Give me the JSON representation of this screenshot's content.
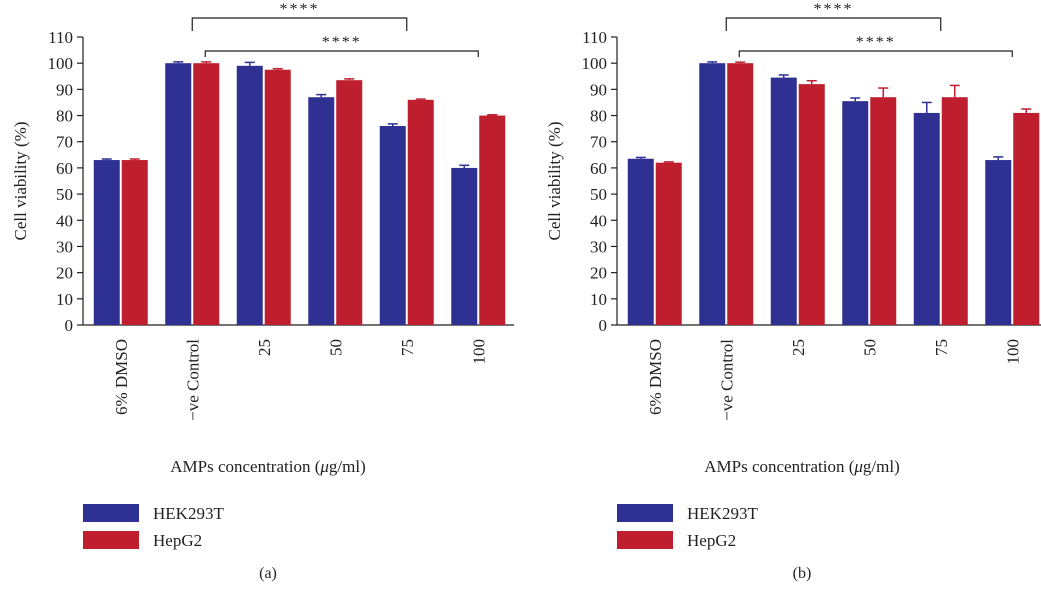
{
  "colors": {
    "HEK293T": "#2e3192",
    "HepG2": "#be1e2d",
    "axis": "#231f20"
  },
  "chart_data": [
    {
      "type": "bar",
      "panel_label": "(a)",
      "categories": [
        "6% DMSO",
        "−ve Control",
        "25",
        "50",
        "75",
        "100"
      ],
      "series": [
        {
          "name": "HEK293T",
          "values": [
            63,
            100,
            99,
            87,
            76,
            60
          ],
          "errors": [
            0.4,
            0.5,
            1.3,
            1.0,
            0.8,
            1.0
          ]
        },
        {
          "name": "HepG2",
          "values": [
            63,
            100,
            97.5,
            93.5,
            86,
            80
          ],
          "errors": [
            0.4,
            0.5,
            0.4,
            0.5,
            0.3,
            0.3
          ]
        }
      ],
      "xlabel_parts": [
        "AMPs concentration (",
        "μ",
        "g/ml)"
      ],
      "ylabel": "Cell viability (%)",
      "ylim": [
        0,
        110
      ],
      "yticks": [
        "0",
        "10",
        "20",
        "30",
        "40",
        "50",
        "60",
        "70",
        "80",
        "90",
        "100",
        "110"
      ],
      "significance": [
        {
          "from": 1,
          "to": 4,
          "label": "****"
        },
        {
          "from": 1,
          "to": 5,
          "label": "****"
        }
      ],
      "legend_placement": "bottom-left"
    },
    {
      "type": "bar",
      "panel_label": "(b)",
      "categories": [
        "6% DMSO",
        "−ve Control",
        "25",
        "50",
        "75",
        "100"
      ],
      "series": [
        {
          "name": "HEK293T",
          "values": [
            63.5,
            100,
            94.5,
            85.5,
            81,
            63
          ],
          "errors": [
            0.5,
            0.5,
            1.0,
            1.2,
            4.0,
            1.2
          ]
        },
        {
          "name": "HepG2",
          "values": [
            62,
            100,
            92,
            87,
            87,
            81
          ],
          "errors": [
            0.3,
            0.4,
            1.3,
            3.5,
            4.5,
            1.5
          ]
        }
      ],
      "xlabel_parts": [
        "AMPs concentration (",
        "μ",
        "g/ml)"
      ],
      "ylabel": "Cell viability (%)",
      "ylim": [
        0,
        110
      ],
      "yticks": [
        "0",
        "10",
        "20",
        "30",
        "40",
        "50",
        "60",
        "70",
        "80",
        "90",
        "100",
        "110"
      ],
      "significance": [
        {
          "from": 1,
          "to": 4,
          "label": "****"
        },
        {
          "from": 1,
          "to": 5,
          "label": "****"
        }
      ],
      "legend_placement": "bottom-left"
    }
  ]
}
